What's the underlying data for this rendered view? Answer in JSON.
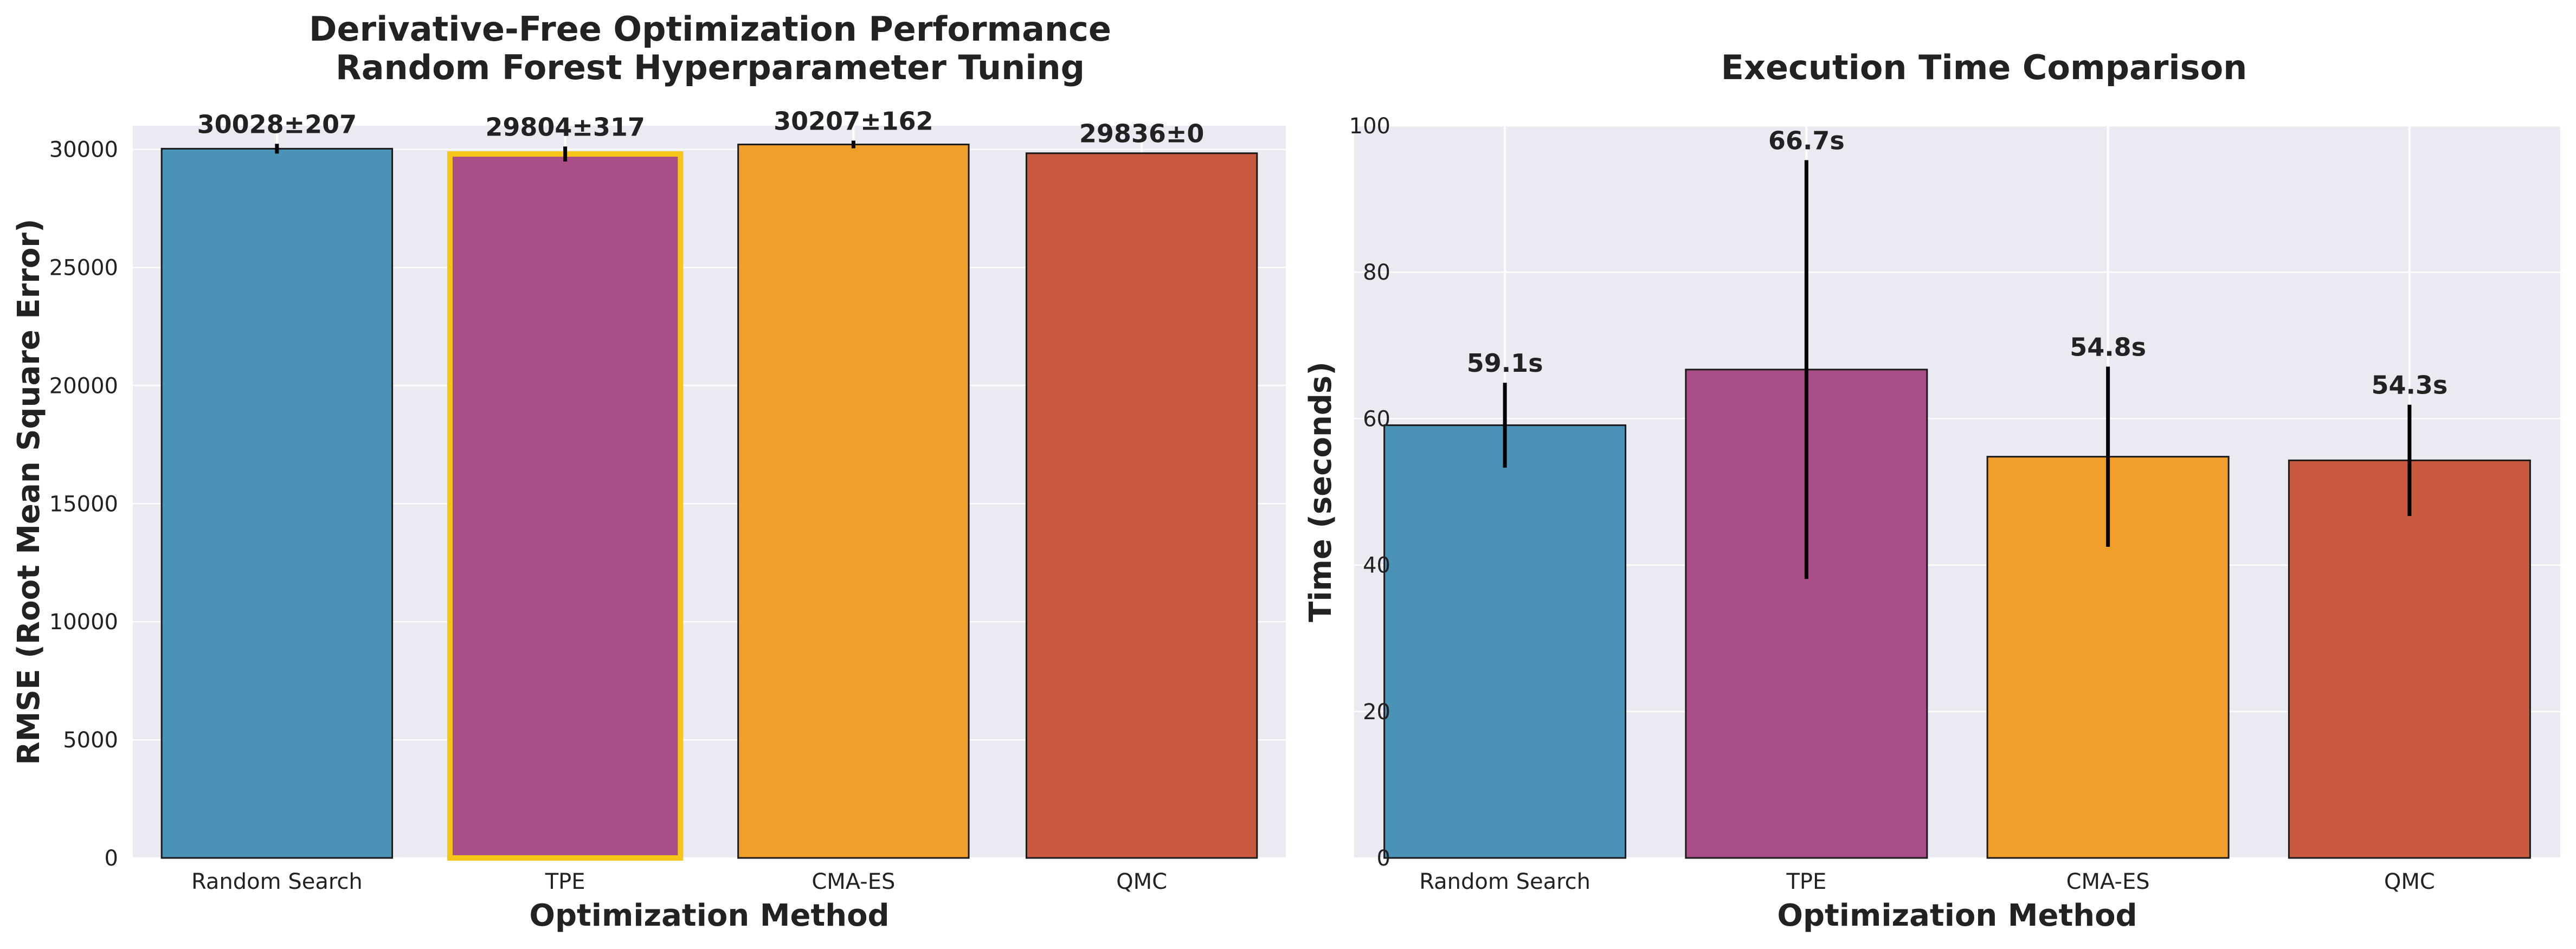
{
  "chart_data": [
    {
      "type": "bar",
      "title": [
        "Derivative-Free Optimization Performance",
        "Random Forest Hyperparameter Tuning"
      ],
      "xlabel": "Optimization Method",
      "ylabel": "RMSE (Root Mean Square Error)",
      "categories": [
        "Random Search",
        "TPE",
        "CMA-ES",
        "QMC"
      ],
      "values": [
        30028,
        29804,
        30207,
        29836
      ],
      "errors": [
        207,
        317,
        162,
        0
      ],
      "data_labels": [
        "30028±207",
        "29804±317",
        "30207±162",
        "29836±0"
      ],
      "ylim": [
        0,
        31000
      ],
      "yticks": [
        0,
        5000,
        10000,
        15000,
        20000,
        25000,
        30000
      ],
      "highlighted": "TPE",
      "grid": true
    },
    {
      "type": "bar",
      "title": [
        "Execution Time Comparison"
      ],
      "xlabel": "Optimization Method",
      "ylabel": "Time (seconds)",
      "categories": [
        "Random Search",
        "TPE",
        "CMA-ES",
        "QMC"
      ],
      "values": [
        59.1,
        66.7,
        54.8,
        54.3
      ],
      "errors": [
        5.8,
        28.6,
        12.3,
        7.6
      ],
      "data_labels": [
        "59.1s",
        "66.7s",
        "54.8s",
        "54.3s"
      ],
      "ylim": [
        0,
        100
      ],
      "yticks": [
        0,
        20,
        40,
        60,
        80,
        100
      ],
      "grid": true
    }
  ],
  "colors": {
    "bars": [
      "#4A92B6",
      "#A94E86",
      "#EF9F2A",
      "#CA5A3F"
    ],
    "highlight_edge": "#F5C518",
    "axes_bg": "#EAEAF2",
    "grid": "#FFFFFF",
    "text": "#222222"
  }
}
